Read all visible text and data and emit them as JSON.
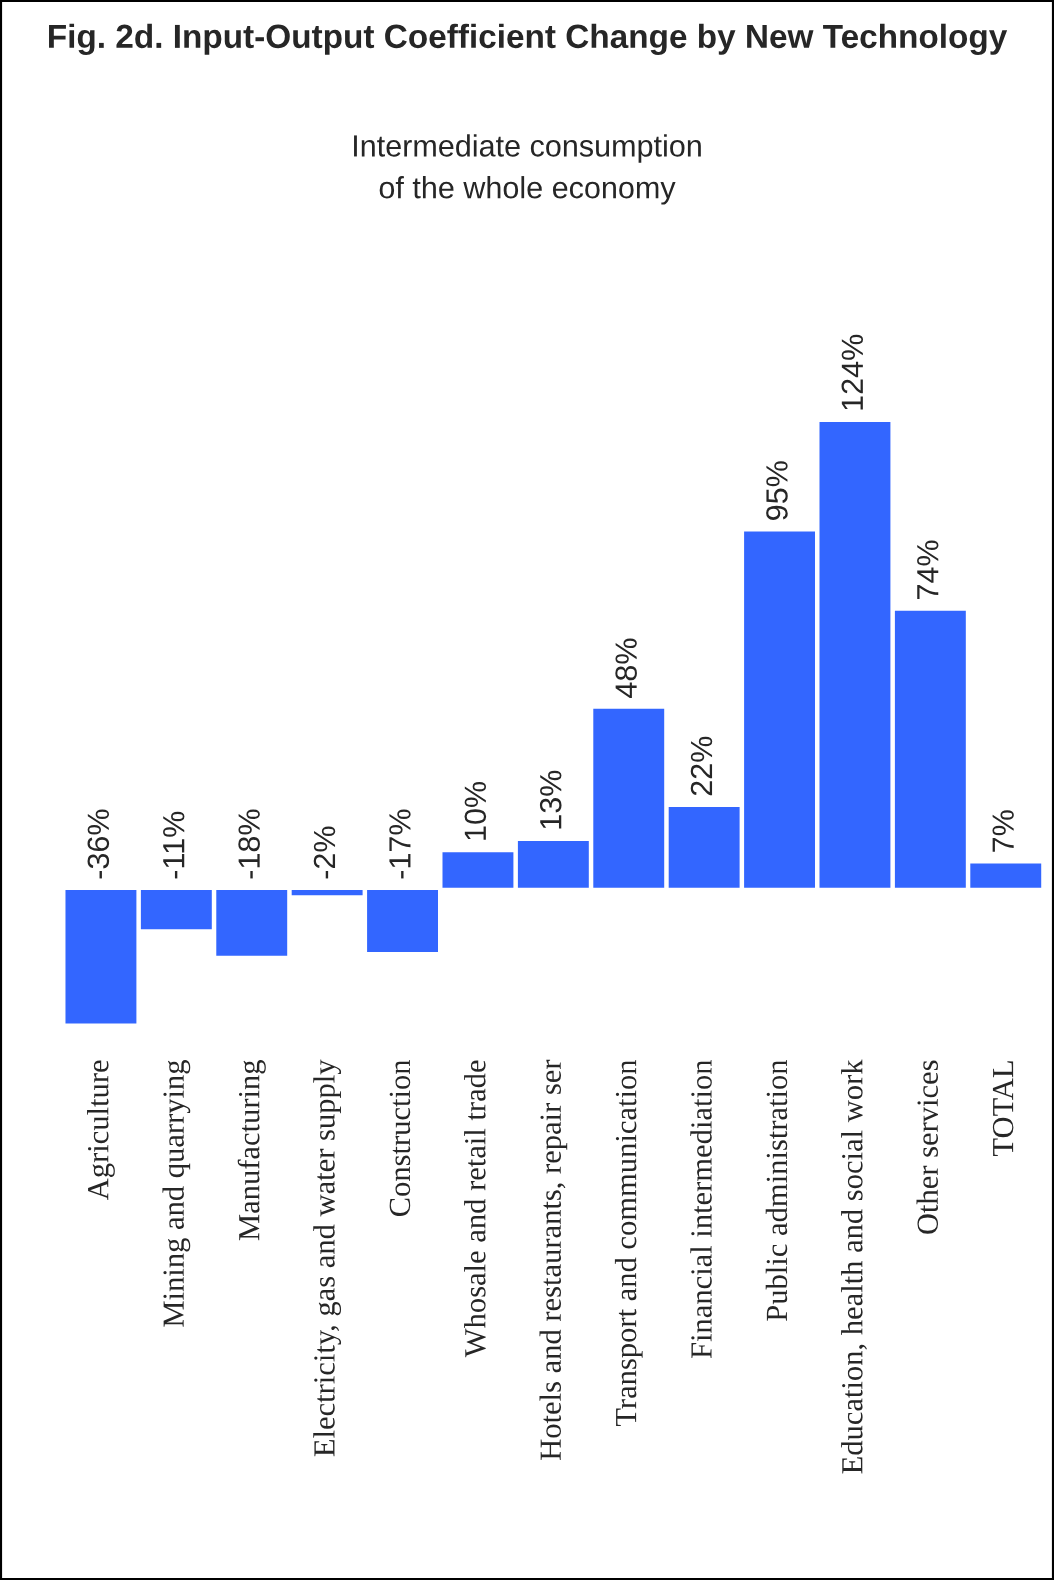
{
  "chart_data": {
    "type": "bar",
    "title": "Fig. 2d. Input-Output Coefficient Change by New Technology",
    "subtitle": "Intermediate consumption\nof the whole economy",
    "categories": [
      "Agriculture",
      "Mining and quarrying",
      "Manufacturing",
      "Electricity, gas and water supply",
      "Construction",
      "Whosale and retail trade",
      "Hotels and restaurants, repair ser",
      "Transport and communication",
      "Financial intermediation",
      "Public administration",
      "Education, health and social work",
      "Other services",
      "TOTAL"
    ],
    "values": [
      -36,
      -11,
      -18,
      -2,
      -17,
      10,
      13,
      48,
      22,
      95,
      124,
      74,
      7
    ],
    "value_labels": [
      "-36%",
      "-11%",
      "-18%",
      "-2%",
      "-17%",
      "10%",
      "13%",
      "48%",
      "22%",
      "95%",
      "124%",
      "74%",
      "7%"
    ],
    "color": "#3366ff"
  }
}
